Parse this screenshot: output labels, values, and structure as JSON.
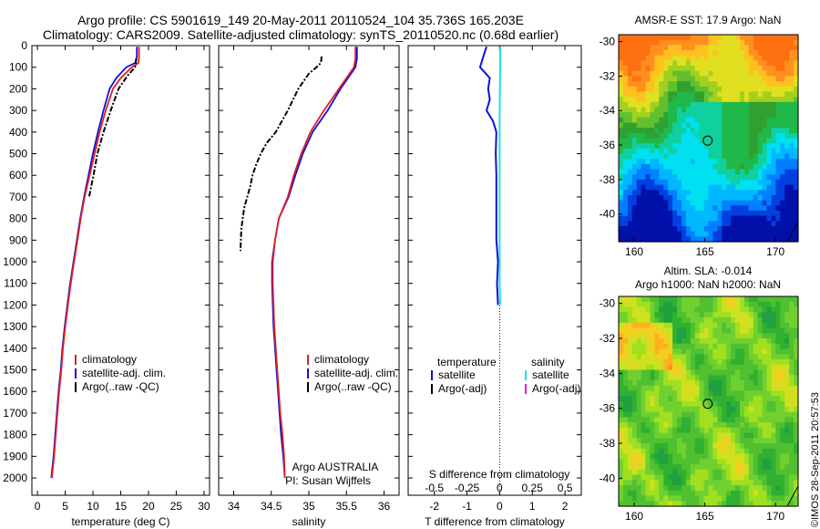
{
  "header": {
    "line1": "Argo profile: CS 5901619_149 20-May-2011 20110524_104 35.736S 165.203E",
    "line2": "Climatology: CARS2009. Satellite-adjusted climatology: synTS_20110520.nc (0.68d earlier)"
  },
  "colors": {
    "climatology": "#e02020",
    "satellite": "#1010d8",
    "argo": "#000000",
    "salinity_satellite": "#22e0e8",
    "salinity_argo": "#e020e0"
  },
  "chart_data": [
    {
      "type": "line",
      "id": "temperature",
      "xlabel": "temperature (deg C)",
      "ylabel": "",
      "xlim": [
        -1,
        31
      ],
      "ylim": [
        2080,
        0
      ],
      "xticks": [
        0,
        5,
        10,
        15,
        20,
        25,
        30
      ],
      "yticks": [
        0,
        100,
        200,
        300,
        400,
        500,
        600,
        700,
        800,
        900,
        1000,
        1100,
        1200,
        1300,
        1400,
        1500,
        1600,
        1700,
        1800,
        1900,
        2000
      ],
      "legend": [
        "climatology",
        "satellite-adj. clim.",
        "Argo(..raw -QC)"
      ],
      "series": [
        {
          "name": "climatology",
          "x": [
            18.3,
            18.3,
            18.2,
            17.0,
            15.0,
            13.6,
            12.3,
            11.2,
            10.3,
            9.4,
            8.5,
            7.8,
            7.2,
            6.6,
            6.0,
            5.5,
            5.0,
            4.6,
            4.3,
            3.9,
            3.6,
            3.3,
            3.0,
            2.8,
            2.6
          ],
          "y": [
            5,
            50,
            80,
            100,
            150,
            200,
            300,
            400,
            500,
            600,
            700,
            800,
            900,
            1000,
            1100,
            1200,
            1300,
            1400,
            1500,
            1600,
            1700,
            1800,
            1900,
            1950,
            2000
          ]
        },
        {
          "name": "satellite-adj. clim.",
          "x": [
            17.9,
            17.9,
            17.6,
            16.0,
            14.2,
            13.0,
            11.9,
            10.9,
            10.0,
            9.2,
            8.4,
            7.7,
            7.1,
            6.5,
            5.9,
            5.4,
            4.9,
            4.5,
            4.2,
            3.8,
            3.5,
            3.2,
            2.9,
            2.7,
            2.5
          ],
          "y": [
            5,
            50,
            80,
            100,
            150,
            200,
            300,
            400,
            500,
            600,
            700,
            800,
            900,
            1000,
            1100,
            1200,
            1300,
            1400,
            1500,
            1600,
            1700,
            1800,
            1900,
            1950,
            2000
          ]
        },
        {
          "name": "Argo(..raw -QC)",
          "x": [
            17.8,
            17.6,
            16.2,
            14.6,
            13.2,
            11.9,
            10.8,
            10.1,
            9.3
          ],
          "y": [
            60,
            100,
            140,
            200,
            300,
            400,
            500,
            600,
            700
          ]
        }
      ]
    },
    {
      "type": "line",
      "id": "salinity",
      "xlabel": "salinity",
      "xlim": [
        33.8,
        36.2
      ],
      "ylim": [
        2080,
        0
      ],
      "xticks": [
        34,
        34.5,
        35,
        35.5,
        36
      ],
      "legend": [
        "climatology",
        "satellite-adj. clim.",
        "Argo(..raw -QC)"
      ],
      "annotation": [
        "Argo AUSTRALIA",
        "PI: Susan Wijffels"
      ],
      "series": [
        {
          "name": "climatology",
          "x": [
            35.62,
            35.62,
            35.6,
            35.5,
            35.4,
            35.2,
            35.02,
            34.9,
            34.8,
            34.72,
            34.6,
            34.55,
            34.52,
            34.52,
            34.53,
            34.54,
            34.56,
            34.58,
            34.6,
            34.62,
            34.65,
            34.67,
            34.68
          ],
          "y": [
            5,
            60,
            100,
            150,
            200,
            300,
            400,
            500,
            600,
            700,
            800,
            900,
            1000,
            1100,
            1200,
            1300,
            1400,
            1500,
            1600,
            1700,
            1800,
            1900,
            2000
          ]
        },
        {
          "name": "satellite-adj. clim.",
          "x": [
            35.64,
            35.64,
            35.62,
            35.52,
            35.42,
            35.25,
            35.05,
            34.92,
            34.82,
            34.73,
            34.6,
            34.55,
            34.51,
            34.51,
            34.52,
            34.53,
            34.55,
            34.57,
            34.59,
            34.61,
            34.63,
            34.66,
            34.68
          ],
          "y": [
            5,
            60,
            100,
            150,
            200,
            300,
            400,
            500,
            600,
            700,
            800,
            900,
            1000,
            1100,
            1200,
            1300,
            1400,
            1500,
            1600,
            1700,
            1800,
            1900,
            2000
          ]
        },
        {
          "name": "Argo(..raw -QC)",
          "x": [
            35.17,
            35.16,
            35.1,
            35.0,
            34.86,
            34.72,
            34.56,
            34.44,
            34.36,
            34.3,
            34.25,
            34.22,
            34.14,
            34.12,
            34.1,
            34.09
          ],
          "y": [
            50,
            80,
            100,
            130,
            200,
            300,
            400,
            450,
            500,
            550,
            600,
            650,
            750,
            800,
            850,
            950
          ]
        }
      ]
    },
    {
      "type": "line",
      "id": "difference",
      "xlabel": "T difference from climatology",
      "xlabel_top": "S difference from climatology",
      "xlim": [
        -2.8,
        2.5
      ],
      "ylim": [
        2080,
        0
      ],
      "xticks": [
        -2,
        -1,
        0,
        1,
        2
      ],
      "xticks_top": [
        -0.5,
        -0.25,
        0,
        0.25,
        0.5
      ],
      "legend_headers": [
        "temperature",
        "salinity"
      ],
      "legend": [
        "satellite",
        "Argo(-adj)",
        "satellite",
        "Argo(-adj)"
      ],
      "series": [
        {
          "name": "satellite",
          "x": [
            -0.4,
            -0.5,
            -0.6,
            -0.3,
            -0.35,
            -0.3,
            -0.4,
            -0.2,
            -0.1,
            -0.12,
            -0.1,
            -0.1,
            -0.1,
            -0.1,
            -0.05,
            -0.08,
            -0.05
          ],
          "y": [
            5,
            50,
            100,
            150,
            200,
            250,
            300,
            350,
            400,
            500,
            600,
            700,
            800,
            900,
            1000,
            1100,
            1200
          ]
        },
        {
          "name": "salinity satellite",
          "x": [
            0.02,
            0.02,
            0.01,
            0.0,
            0.0,
            0.0,
            0.0,
            0.0,
            0.0,
            0.0,
            0.02
          ],
          "y": [
            5,
            100,
            200,
            300,
            400,
            500,
            600,
            700,
            900,
            1100,
            1200
          ]
        }
      ]
    },
    {
      "type": "heatmap",
      "id": "sst",
      "title": "AMSR-E SST: 17.9 Argo: NaN",
      "xticks": [
        160,
        165,
        170
      ],
      "yticks": [
        -30,
        -32,
        -34,
        -36,
        -38,
        -40
      ],
      "xlim": [
        158.9,
        171.6
      ],
      "ylim": [
        -41.6,
        -29.6
      ],
      "marker": [
        165.2,
        -35.74
      ]
    },
    {
      "type": "heatmap",
      "id": "sla",
      "title": "Altim. SLA: -0.014",
      "subtitle": "Argo h1000: NaN h2000: NaN",
      "xticks": [
        160,
        165,
        170
      ],
      "yticks": [
        -30,
        -32,
        -34,
        -36,
        -38,
        -40
      ],
      "xlim": [
        158.9,
        171.6
      ],
      "ylim": [
        -41.6,
        -29.6
      ],
      "marker": [
        165.2,
        -35.74
      ]
    }
  ],
  "stamp": "©IMOS 28-Sep-2011 20:57:53"
}
